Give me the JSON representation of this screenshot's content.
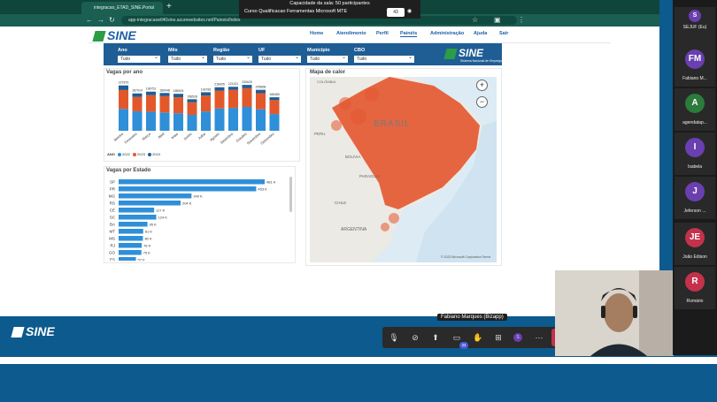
{
  "browser": {
    "tab_title": "integracao_ETAD_SINE.Portal",
    "new_tab": "+",
    "url": "app-integracaoetl40sine.azurewebsites.net/Paineis/Index",
    "icons": {
      "back": "arrow-left-icon",
      "forward": "arrow-right-icon",
      "reload": "reload-icon"
    }
  },
  "meeting": {
    "capacity": "Capacidade da sala: 50 participantes",
    "title": "Curso Qualificacao Ferramentas Microsoft MTE",
    "timer": "1:10:28",
    "count": "43"
  },
  "site": {
    "logo": "SINE",
    "menu": [
      "Home",
      "Atendimento",
      "Perfil",
      "Painéis",
      "Administração",
      "Ajuda",
      "Sair"
    ],
    "filters": [
      {
        "label": "Ano",
        "value": "Tudo"
      },
      {
        "label": "Mês",
        "value": "Tudo"
      },
      {
        "label": "Região",
        "value": "Tudo"
      },
      {
        "label": "UF",
        "value": "Tudo"
      },
      {
        "label": "Município",
        "value": "Tudo"
      },
      {
        "label": "CBO",
        "value": "Tudo"
      }
    ],
    "brand_logo": "SINE",
    "brand_sub": "Sistema Nacional de Emprego"
  },
  "chart_data": [
    {
      "type": "bar",
      "title": "Vagas por ano",
      "categories": [
        "Janeiro",
        "Fevereiro",
        "Março",
        "Abril",
        "Maio",
        "Junho",
        "Julho",
        "Agosto",
        "Setembro",
        "Outubro",
        "Novembro",
        "Dezembro"
      ],
      "totals": [
        "227870",
        "187914",
        "196751",
        "189948",
        "185903",
        "158528",
        "193783",
        "218905",
        "221131",
        "230629",
        "205868",
        "168480"
      ],
      "series": [
        {
          "name": "2022",
          "color": "#2f8fd8",
          "values": [
            110000,
            98000,
            96000,
            92000,
            88000,
            80000,
            97000,
            112000,
            115000,
            120000,
            108000,
            84000
          ]
        },
        {
          "name": "2023",
          "color": "#e3582b",
          "values": [
            95000,
            72000,
            83000,
            82000,
            80000,
            63000,
            80000,
            90000,
            91000,
            94000,
            81000,
            70000
          ]
        },
        {
          "name": "2024",
          "color": "#1f5d95",
          "values": [
            22870,
            17914,
            17751,
            15948,
            17903,
            15528,
            16783,
            16905,
            15131,
            16629,
            16868,
            14480
          ]
        }
      ],
      "legend_label": "ANO"
    },
    {
      "type": "bar",
      "title": "Vagas por Estado",
      "categories": [
        "SP",
        "PR",
        "MG",
        "RS",
        "CE",
        "SC",
        "BA",
        "MT",
        "MS",
        "RJ",
        "GO",
        "ES"
      ],
      "values": [
        481,
        453,
        240,
        204,
        117,
        124,
        95,
        81,
        80,
        76,
        75,
        57
      ],
      "labels": [
        "481 K",
        "453 K",
        "240 K",
        "204 K",
        "117 K",
        "124 K",
        "95 K",
        "81 K",
        "80 K",
        "76 K",
        "75 K",
        "57 K"
      ]
    }
  ],
  "map": {
    "title": "Mapa de calor",
    "labels": [
      "COLÔMBIA",
      "BRASIL",
      "PERU",
      "BOLÍVIA",
      "CHILE",
      "PARAGUAI",
      "ARGENTINA"
    ],
    "zoom_in": "+",
    "zoom_out": "−",
    "attribution": "© 2023 Microsoft Corporation  Terms"
  },
  "footer": {
    "logo": "SINE"
  },
  "call": {
    "presenter": "Fabiano Marques (Bizapp)",
    "chat_badge": "34",
    "controls": [
      "mic-off-icon",
      "camera-off-icon",
      "share-icon",
      "chat-icon",
      "raise-hand-icon",
      "apps-icon",
      "more-icon",
      "leave-icon"
    ]
  },
  "participants": [
    {
      "initials": "S",
      "name": "SEJUF (Eu)",
      "color": "#6a3fb0"
    },
    {
      "initials": "FM",
      "name": "Fabiano M...",
      "color": "#6a3fb0"
    },
    {
      "initials": "A",
      "name": "agendatap...",
      "color": "#2c7a3c"
    },
    {
      "initials": "I",
      "name": "Isabela",
      "color": "#6a3fb0"
    },
    {
      "initials": "J",
      "name": "Jeferson ...",
      "color": "#6a3fb0"
    },
    {
      "initials": "JE",
      "name": "João Edison",
      "color": "#c4314b"
    },
    {
      "initials": "R",
      "name": "Romário",
      "color": "#c4314b"
    }
  ]
}
